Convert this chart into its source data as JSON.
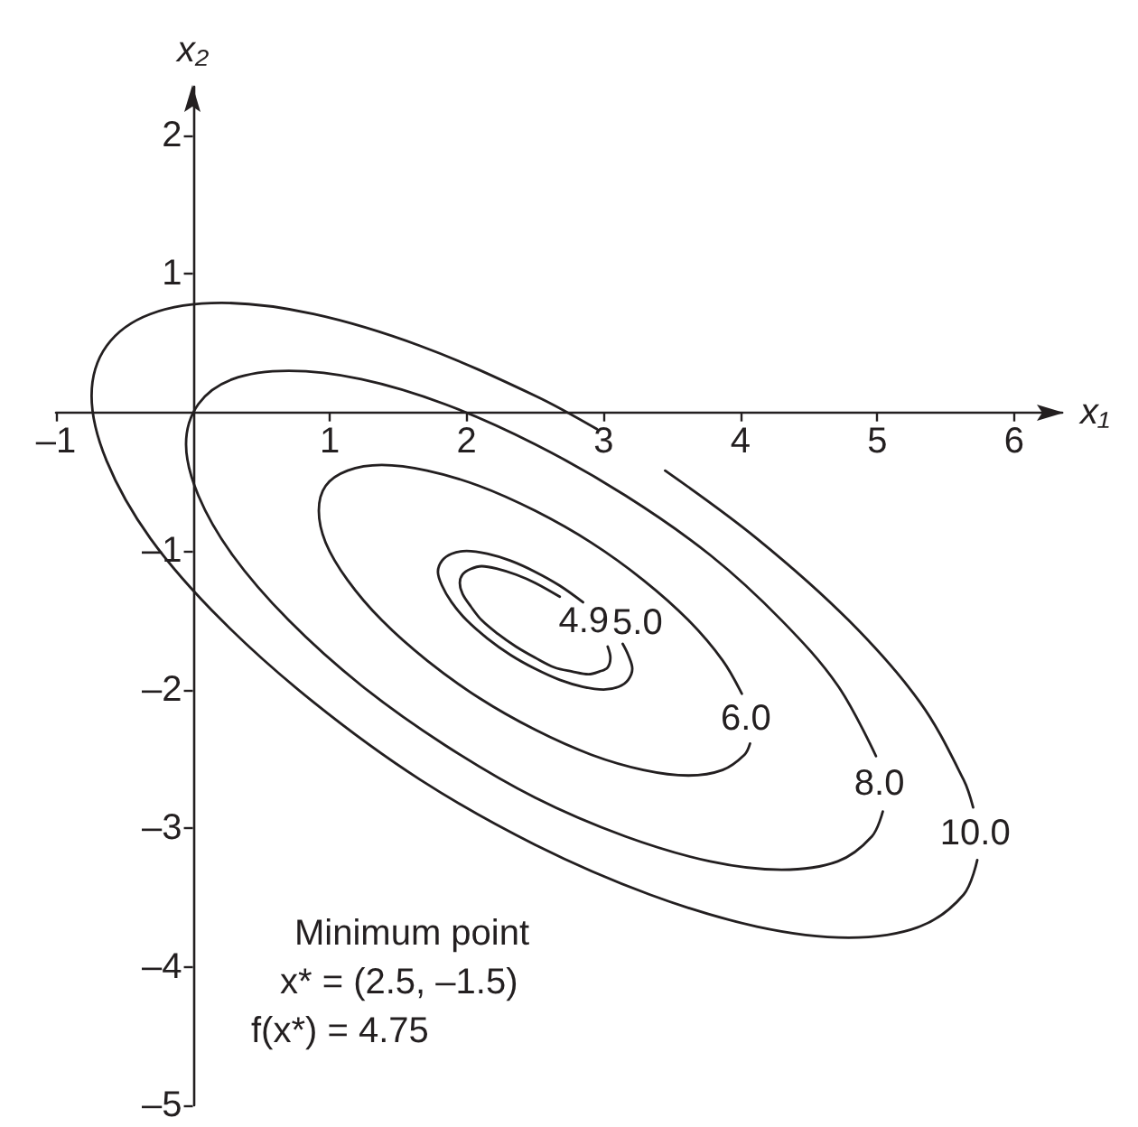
{
  "chart_data": {
    "type": "line",
    "xlabel": "x₁",
    "ylabel": "x₂",
    "annotations": [
      "Minimum point",
      "x* = (2.5, –1.5)",
      "f(x*) = 4.75"
    ],
    "xlim": [
      -1,
      6.35
    ],
    "ylim": [
      -5,
      2.35
    ],
    "xticks": [
      {
        "value": -1,
        "label": "–1"
      },
      1,
      2,
      3,
      4,
      5,
      6
    ],
    "yticks": [
      {
        "value": -5,
        "label": "–5"
      },
      {
        "value": -4,
        "label": "–4"
      },
      {
        "value": -3,
        "label": "–3"
      },
      {
        "value": -2,
        "label": "–2"
      },
      {
        "value": -1,
        "label": "–1"
      },
      1,
      2
    ],
    "marker": "none",
    "line_style": "solid",
    "series": [
      {
        "name": "4.9",
        "color": "#231f20",
        "x": [
          2.68,
          2.5,
          2.36,
          2.23,
          2.11,
          2.03,
          1.97,
          1.95,
          1.97,
          2.03,
          2.11,
          2.23,
          2.36,
          2.5,
          2.64,
          2.77,
          2.89,
          2.97,
          3.03,
          3.05,
          3.03
        ],
        "values": [
          -1.33,
          -1.23,
          -1.17,
          -1.13,
          -1.11,
          -1.13,
          -1.17,
          -1.23,
          -1.31,
          -1.4,
          -1.5,
          -1.6,
          -1.69,
          -1.77,
          -1.84,
          -1.87,
          -1.89,
          -1.87,
          -1.84,
          -1.77,
          -1.69
        ]
      },
      {
        "name": "5.0",
        "color": "#231f20",
        "x": [
          2.85,
          2.68,
          2.5,
          2.32,
          2.15,
          2.0,
          1.89,
          1.82,
          1.79,
          1.82,
          1.89,
          2.0,
          2.15,
          2.32,
          2.5,
          2.68,
          2.85,
          3.0,
          3.11,
          3.18,
          3.21,
          3.18,
          3.14
        ],
        "values": [
          -1.37,
          -1.25,
          -1.15,
          -1.07,
          -1.02,
          -1.0,
          -1.02,
          -1.07,
          -1.15,
          -1.25,
          -1.37,
          -1.5,
          -1.63,
          -1.75,
          -1.85,
          -1.93,
          -1.98,
          -2.0,
          -1.98,
          -1.93,
          -1.85,
          -1.75,
          -1.67
        ]
      },
      {
        "name": "6.0",
        "color": "#231f20",
        "x": [
          4.01,
          3.87,
          3.62,
          3.29,
          2.91,
          2.5,
          2.09,
          1.71,
          1.38,
          1.13,
          0.97,
          0.92,
          0.97,
          1.13,
          1.38,
          1.71,
          2.09,
          2.5,
          2.91,
          3.29,
          3.62,
          3.87,
          4.03,
          4.07
        ],
        "values": [
          -2.03,
          -1.79,
          -1.5,
          -1.21,
          -0.94,
          -0.71,
          -0.53,
          -0.42,
          -0.38,
          -0.42,
          -0.53,
          -0.71,
          -0.94,
          -1.21,
          -1.5,
          -1.79,
          -2.06,
          -2.29,
          -2.47,
          -2.58,
          -2.62,
          -2.58,
          -2.47,
          -2.39
        ]
      },
      {
        "name": "8.0",
        "color": "#231f20",
        "x": [
          4.99,
          4.71,
          4.3,
          3.78,
          3.16,
          2.5,
          1.84,
          1.23,
          0.7,
          0.29,
          0.04,
          -0.05,
          0.04,
          0.29,
          0.7,
          1.23,
          1.84,
          2.5,
          3.16,
          3.78,
          4.3,
          4.71,
          4.96,
          5.04
        ],
        "values": [
          -2.48,
          -1.97,
          -1.5,
          -1.03,
          -0.6,
          -0.23,
          0.06,
          0.24,
          0.3,
          0.24,
          0.06,
          -0.23,
          -0.6,
          -1.03,
          -1.5,
          -1.97,
          -2.4,
          -2.78,
          -3.06,
          -3.24,
          -3.3,
          -3.24,
          -3.06,
          -2.88
        ]
      },
      {
        "name": "10.0",
        "color": "#231f20",
        "x": [
          5.7,
          5.63,
          5.31,
          4.79,
          4.12,
          3.45,
          null,
          2.95,
          2.5,
          1.66,
          0.88,
          0.21,
          -0.31,
          -0.63,
          -0.74,
          -0.63,
          -0.31,
          0.21,
          0.88,
          1.66,
          2.5,
          3.34,
          4.12,
          4.79,
          5.31,
          5.63,
          5.73
        ],
        "values": [
          -2.85,
          -2.65,
          -2.09,
          -1.5,
          -0.91,
          -0.42,
          null,
          -0.12,
          0.12,
          0.48,
          0.71,
          0.79,
          0.71,
          0.48,
          0.12,
          -0.35,
          -0.91,
          -1.5,
          -2.09,
          -2.65,
          -3.12,
          -3.48,
          -3.71,
          -3.79,
          -3.71,
          -3.48,
          -3.23
        ]
      }
    ]
  }
}
